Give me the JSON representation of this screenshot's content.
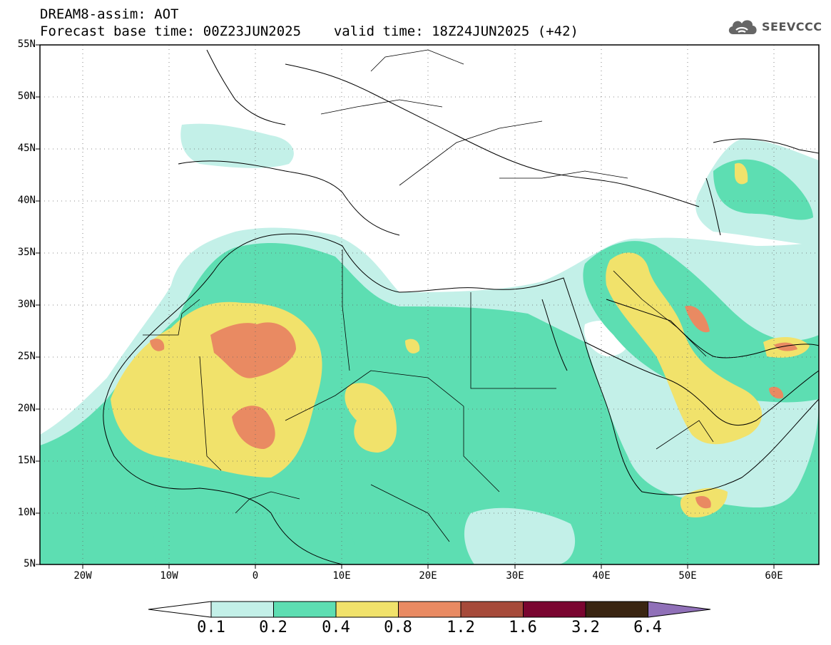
{
  "header": {
    "title": "DREAM8-assim: AOT",
    "base_time": "Forecast base time: 00Z23JUN2025",
    "valid_time": "valid time: 18Z24JUN2025 (+42)"
  },
  "logo": {
    "text": "SEEVCCC",
    "icon": "cloud-icon"
  },
  "axes": {
    "lat_labels": [
      "55N",
      "50N",
      "45N",
      "40N",
      "35N",
      "30N",
      "25N",
      "20N",
      "15N",
      "10N",
      "5N"
    ],
    "lon_labels": [
      "20W",
      "10W",
      "0",
      "10E",
      "20E",
      "30E",
      "40E",
      "50E",
      "60E"
    ]
  },
  "colorbar": {
    "levels": [
      "0.1",
      "0.2",
      "0.4",
      "0.8",
      "1.2",
      "1.6",
      "3.2",
      "6.4"
    ],
    "colors": [
      "#ffffff",
      "#c3f0e8",
      "#5ddeb2",
      "#f1e26b",
      "#e98a62",
      "#a64a3a",
      "#7a0530",
      "#3a2512",
      "#9070b8"
    ]
  }
}
